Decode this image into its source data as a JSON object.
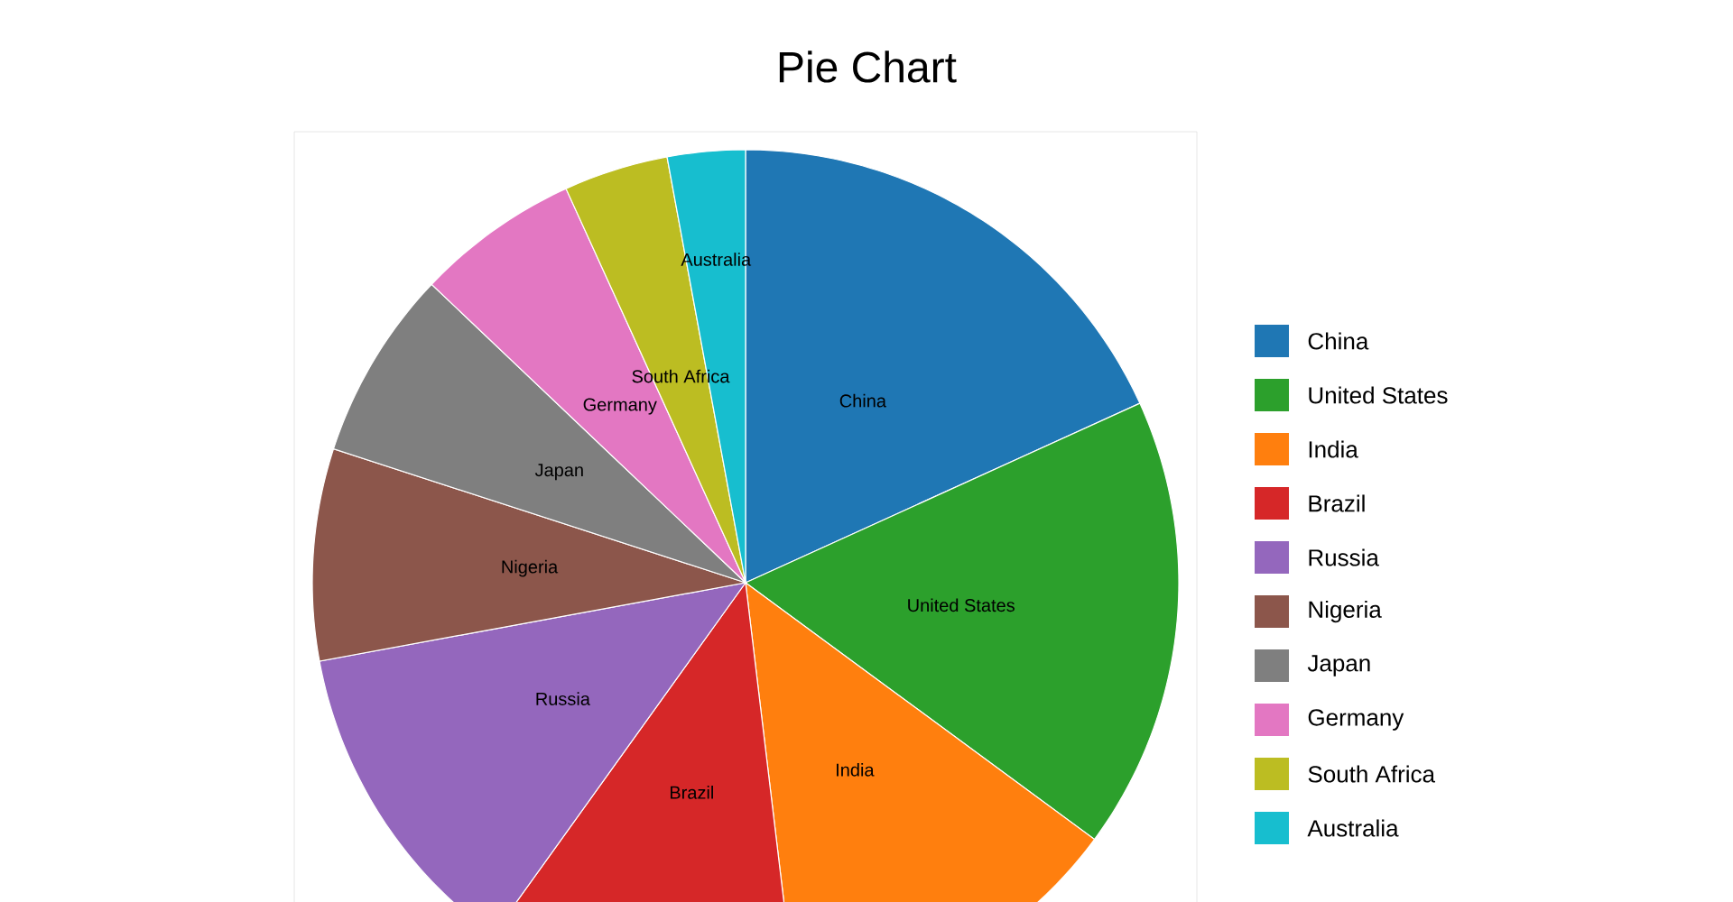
{
  "chart_data": {
    "type": "pie",
    "title": "Pie Chart",
    "categories": [
      "China",
      "United States",
      "India",
      "Brazil",
      "Russia",
      "Nigeria",
      "Japan",
      "Germany",
      "South Africa",
      "Australia"
    ],
    "values": [
      18.2,
      16.9,
      13.0,
      11.8,
      12.2,
      7.9,
      7.1,
      6.1,
      3.9,
      2.9
    ],
    "colors": [
      "#1f77b4",
      "#2ca02c",
      "#ff7f0e",
      "#d62728",
      "#9467bd",
      "#8c564b",
      "#7f7f7f",
      "#e377c2",
      "#bcbd22",
      "#17becf"
    ],
    "legend": "right"
  }
}
